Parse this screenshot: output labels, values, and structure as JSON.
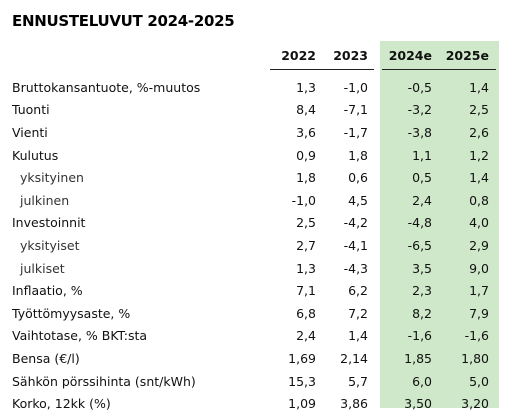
{
  "title": "ENNUSTELUVUT 2024-2025",
  "columns": [
    "2022",
    "2023",
    "2024e",
    "2025e"
  ],
  "rows": [
    {
      "label": "Bruttokansantuote, %-muutos",
      "indent": false,
      "values": [
        "1,3",
        "-1,0",
        "-0,5",
        "1,4"
      ]
    },
    {
      "label": "Tuonti",
      "indent": false,
      "values": [
        "8,4",
        "-7,1",
        "-3,2",
        "2,5"
      ]
    },
    {
      "label": "Vienti",
      "indent": false,
      "values": [
        "3,6",
        "-1,7",
        "-3,8",
        "2,6"
      ]
    },
    {
      "label": "Kulutus",
      "indent": false,
      "values": [
        "0,9",
        "1,8",
        "1,1",
        "1,2"
      ]
    },
    {
      "label": "yksityinen",
      "indent": true,
      "values": [
        "1,8",
        "0,6",
        "0,5",
        "1,4"
      ]
    },
    {
      "label": "julkinen",
      "indent": true,
      "values": [
        "-1,0",
        "4,5",
        "2,4",
        "0,8"
      ]
    },
    {
      "label": "Investoinnit",
      "indent": false,
      "values": [
        "2,5",
        "-4,2",
        "-4,8",
        "4,0"
      ]
    },
    {
      "label": "yksityiset",
      "indent": true,
      "values": [
        "2,7",
        "-4,1",
        "-6,5",
        "2,9"
      ]
    },
    {
      "label": "julkiset",
      "indent": true,
      "values": [
        "1,3",
        "-4,3",
        "3,5",
        "9,0"
      ]
    },
    {
      "label": "Inflaatio, %",
      "indent": false,
      "values": [
        "7,1",
        "6,2",
        "2,3",
        "1,7"
      ]
    },
    {
      "label": "Työttömyysaste, %",
      "indent": false,
      "values": [
        "6,8",
        "7,2",
        "8,2",
        "7,9"
      ]
    },
    {
      "label": "Vaihtotase, % BKT:sta",
      "indent": false,
      "values": [
        "2,4",
        "1,4",
        "-1,6",
        "-1,6"
      ]
    },
    {
      "label": "Bensa (€/l)",
      "indent": false,
      "values": [
        "1,69",
        "2,14",
        "1,85",
        "1,80"
      ]
    },
    {
      "label": "Sähkön pörssihinta (snt/kWh)",
      "indent": false,
      "values": [
        "15,3",
        "5,7",
        "6,0",
        "5,0"
      ]
    },
    {
      "label": "Korko, 12kk (%)",
      "indent": false,
      "values": [
        "1,09",
        "3,86",
        "3,50",
        "3,20"
      ]
    }
  ],
  "colors": {
    "forecast_highlight": "#cfe8c9",
    "text": "#111111"
  }
}
